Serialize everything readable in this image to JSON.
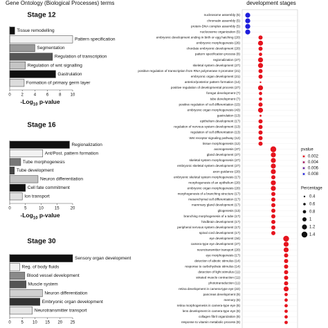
{
  "figure_title": "Gene Ontology (Biological Processes) terms",
  "chart_data": [
    {
      "type": "barh",
      "title": "Stage 12",
      "categories": [
        "Tissue remodelling",
        "Pattern specification",
        "Segmentation",
        "Regulation of transcription",
        "Regulation of wnt signalling",
        "Gastrulation",
        "Formation of primary germ layer"
      ],
      "values": [
        0.8,
        10,
        4,
        6.8,
        2.5,
        7.3,
        2.3
      ],
      "colors": [
        "#111111",
        "#f2f2f2",
        "#9a9a9a",
        "#555555",
        "#c4c4c4",
        "#111111",
        "#dcdcdc"
      ],
      "xlim": [
        0,
        10
      ],
      "xticks": [
        0,
        2,
        4,
        6,
        8,
        10
      ],
      "x_label": {
        "prefix": "-Log",
        "sub": "10",
        "suffix": " p-value"
      }
    },
    {
      "type": "barh",
      "title": "Stage 16",
      "categories": [
        "Regionalization",
        "Ant/Post. pattern formation",
        "Tube morphogenesis",
        "Tube development",
        "Neuron differentiation",
        "Cell fate commitment",
        "Ion transport"
      ],
      "values": [
        19,
        10.5,
        3.5,
        1.5,
        9,
        5,
        4
      ],
      "colors": [
        "#111111",
        "#f2f2f2",
        "#777777",
        "#444444",
        "#c4c4c4",
        "#111111",
        "#e0e0e0"
      ],
      "xlim": [
        0,
        20
      ],
      "xticks": [
        0,
        5,
        10,
        15,
        20
      ],
      "x_label": {
        "prefix": "-Log",
        "sub": "10",
        "suffix": " p-value"
      }
    },
    {
      "type": "barh",
      "title": "Stage 30",
      "categories": [
        "Sensory organ development",
        "Reg. of body fluids",
        "Blood vessel development",
        "Muscle system",
        "Neuron differentiation",
        "Embryonic organ development",
        "Neurotransmitter transport"
      ],
      "values": [
        25,
        4,
        6,
        6.5,
        13,
        12,
        9
      ],
      "colors": [
        "#111111",
        "#f2f2f2",
        "#8a8a8a",
        "#555555",
        "#d0d0d0",
        "#333333",
        "#e6e6e6"
      ],
      "xlim": [
        0,
        25
      ],
      "xticks": [
        0,
        5,
        10,
        15,
        20,
        25
      ]
    },
    {
      "type": "dot",
      "x_label": "development stages",
      "categories": [
        "nucleosome assembly (5)",
        "chromatin assembly (5)",
        "protein-DNA complex assembly (5)",
        "nucleosome organization (5)",
        "embryonic development ending in birth or egg hatching (20)",
        "embryonic morphogenesis (26)",
        "chordate embryonic development (20)",
        "pattern specification process (8)",
        "regionalization (27)",
        "skeletal system development (27)",
        "positive regulation of transcription from RNA polymerase II promoter (21)",
        "embryonic organ development (21)",
        "anterior/posterior pattern formation (14)",
        "positive regulation of developmental process (27)",
        "foregut development (7)",
        "tube development (7)",
        "positive regulation of cell differentiation (15)",
        "embryonic organ morphogenesis (43)",
        "gastrulation (13)",
        "epithelium development (17)",
        "regulation of nervous system development (13)",
        "regulation of cell differentiation (13)",
        "Wnt receptor signaling pathway (12)",
        "tissue morphogenesis (12)",
        "axonogenesis (37)",
        "gland development (27)",
        "skeletal system morphogenesis (27)",
        "embryonic skeletal system development (27)",
        "axon guidance (20)",
        "embryonic skeletal system morphogenesis (17)",
        "morphogenesis of an epithelium (20)",
        "embryonic organ morphogenesis (20)",
        "morphogenesis of a branching structure (17)",
        "mesenchymal cell differentiation (17)",
        "mammary gland development (17)",
        "gliogenesis (13)",
        "branching morphogenesis of a tube (17)",
        "hindbrain development (17)",
        "peripheral nervous system development (17)",
        "spinal cord development (17)",
        "eye development (34)",
        "camera-type eye development (27)",
        "neurotransmitter transport (20)",
        "eye morphogenesis (17)",
        "detection of abiotic stimulus (14)",
        "response to carbohydrate stimulus (14)",
        "detection of light stimulus (11)",
        "striated muscle contraction (11)",
        "phototransduction (11)",
        "retina development in camera-type eye (22)",
        "pancreas development (9)",
        "memory (8)",
        "retina morphogenesis in camera-type eye (8)",
        "lens development in camera-type eye (8)",
        "collagen fibril organization (8)",
        "response to vitamin metabolic process (8)"
      ],
      "stage": [
        0,
        0,
        0,
        0,
        1,
        1,
        1,
        1,
        1,
        1,
        1,
        1,
        1,
        1,
        1,
        1,
        1,
        1,
        1,
        1,
        1,
        1,
        1,
        1,
        2,
        2,
        2,
        2,
        2,
        2,
        2,
        2,
        2,
        2,
        2,
        2,
        2,
        2,
        2,
        2,
        3,
        3,
        3,
        3,
        3,
        3,
        3,
        3,
        3,
        3,
        3,
        3,
        3,
        3,
        3,
        3
      ],
      "pvalue": [
        0.008,
        0.008,
        0.008,
        0.008,
        0.002,
        0.002,
        0.002,
        0.002,
        0.002,
        0.002,
        0.002,
        0.002,
        0.002,
        0.002,
        0.002,
        0.002,
        0.002,
        0.002,
        0.002,
        0.002,
        0.002,
        0.002,
        0.002,
        0.002,
        0.002,
        0.002,
        0.002,
        0.002,
        0.002,
        0.002,
        0.002,
        0.002,
        0.002,
        0.002,
        0.002,
        0.002,
        0.002,
        0.002,
        0.002,
        0.002,
        0.002,
        0.002,
        0.002,
        0.002,
        0.002,
        0.002,
        0.002,
        0.002,
        0.002,
        0.002,
        0.002,
        0.002,
        0.002,
        0.002,
        0.002,
        0.002
      ],
      "percentage": [
        1.2,
        1.2,
        1.2,
        1.2,
        1.0,
        1.2,
        1.0,
        0.8,
        1.2,
        1.2,
        1.0,
        1.0,
        0.4,
        1.2,
        0.8,
        0.8,
        1.0,
        1.2,
        0.5,
        1.0,
        1.0,
        1.0,
        1.0,
        1.0,
        1.4,
        1.2,
        1.2,
        1.2,
        1.2,
        1.0,
        1.2,
        1.2,
        1.0,
        1.0,
        1.0,
        1.0,
        1.0,
        1.0,
        1.0,
        1.0,
        1.4,
        1.2,
        1.2,
        1.0,
        1.0,
        1.0,
        1.0,
        1.0,
        1.0,
        1.2,
        0.8,
        0.8,
        0.8,
        0.8,
        0.8,
        0.8
      ],
      "pvalue_legend": {
        "title": "pvalue",
        "values": [
          0.002,
          0.004,
          0.006,
          0.008
        ]
      },
      "size_legend": {
        "title": "Percentage",
        "values": [
          0.4,
          0.6,
          0.8,
          1.0,
          1.2,
          1.4
        ]
      }
    }
  ]
}
